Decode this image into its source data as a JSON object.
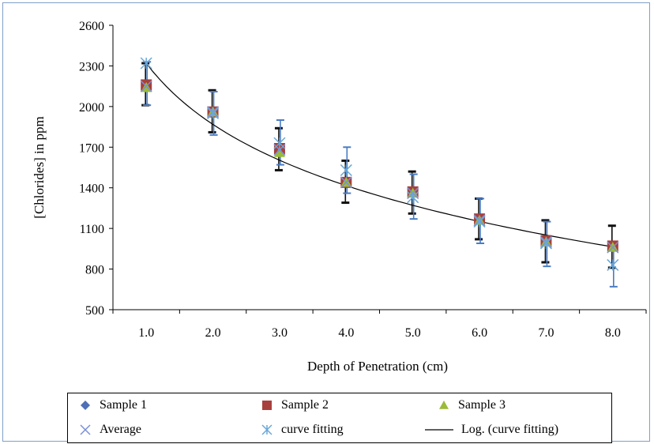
{
  "chart_data": {
    "type": "scatter",
    "xlabel": "Depth of  Penetration (cm)",
    "ylabel": "[Chlorides] in ppm",
    "x_ticks": [
      "1.0",
      "2.0",
      "3.0",
      "4.0",
      "5.0",
      "6.0",
      "7.0",
      "8.0"
    ],
    "y_ticks": [
      "500",
      "800",
      "1100",
      "1400",
      "1700",
      "2000",
      "2300",
      "2600"
    ],
    "xlim": [
      0.5,
      8.5
    ],
    "ylim": [
      500,
      2600
    ],
    "grid": false,
    "legend_position": "bottom",
    "series": [
      {
        "name": "Sample 1",
        "marker": "diamond",
        "color": "#4f6fb8",
        "x": [
          1,
          2,
          3,
          4,
          5,
          6,
          7,
          8
        ],
        "y": [
          2160,
          1960,
          1690,
          1440,
          1360,
          1160,
          1010,
          970
        ]
      },
      {
        "name": "Sample 2",
        "marker": "square",
        "color": "#a93f3c",
        "x": [
          1,
          2,
          3,
          4,
          5,
          6,
          7,
          8
        ],
        "y": [
          2160,
          1960,
          1690,
          1440,
          1370,
          1170,
          1010,
          970
        ]
      },
      {
        "name": "Sample 3",
        "marker": "triangle",
        "color": "#9bbb39",
        "x": [
          1,
          2,
          3,
          4,
          5,
          6,
          7,
          8
        ],
        "y": [
          2140,
          1960,
          1660,
          1440,
          1360,
          1160,
          1000,
          960
        ]
      },
      {
        "name": "Average",
        "marker": "x",
        "color": "#7b8fd4",
        "x": [
          1,
          2,
          3,
          4,
          5,
          6,
          7,
          8
        ],
        "y": [
          2150,
          1960,
          1680,
          1440,
          1360,
          1160,
          1000,
          960
        ]
      },
      {
        "name": "curve fitting",
        "marker": "star",
        "color": "#6aa7d8",
        "x": [
          1,
          2,
          3,
          4,
          5,
          6,
          7,
          8
        ],
        "y": [
          2320,
          1950,
          1730,
          1530,
          1330,
          1150,
          990,
          830
        ]
      },
      {
        "name": "Log. (curve fitting)",
        "marker": "line",
        "color": "#000000",
        "x": [
          1,
          2,
          3,
          4,
          5,
          6,
          7,
          8
        ],
        "y": [
          2320,
          1880,
          1610,
          1430,
          1270,
          1150,
          1050,
          970
        ]
      }
    ],
    "error_bars": {
      "black": [
        {
          "x": 1,
          "low": 2010,
          "high": 2320
        },
        {
          "x": 2,
          "low": 1810,
          "high": 2120
        },
        {
          "x": 3,
          "low": 1530,
          "high": 1840
        },
        {
          "x": 4,
          "low": 1290,
          "high": 1600
        },
        {
          "x": 5,
          "low": 1210,
          "high": 1520
        },
        {
          "x": 6,
          "low": 1020,
          "high": 1320
        },
        {
          "x": 7,
          "low": 850,
          "high": 1160
        },
        {
          "x": 8,
          "low": 810,
          "high": 1120
        }
      ],
      "blue": [
        {
          "x": 1,
          "low": 2010,
          "high": 2330
        },
        {
          "x": 2,
          "low": 1790,
          "high": 2110
        },
        {
          "x": 3,
          "low": 1570,
          "high": 1900
        },
        {
          "x": 4,
          "low": 1360,
          "high": 1700
        },
        {
          "x": 5,
          "low": 1170,
          "high": 1500
        },
        {
          "x": 6,
          "low": 990,
          "high": 1320
        },
        {
          "x": 7,
          "low": 820,
          "high": 1150
        },
        {
          "x": 8,
          "low": 670,
          "high": 1000
        }
      ]
    }
  }
}
